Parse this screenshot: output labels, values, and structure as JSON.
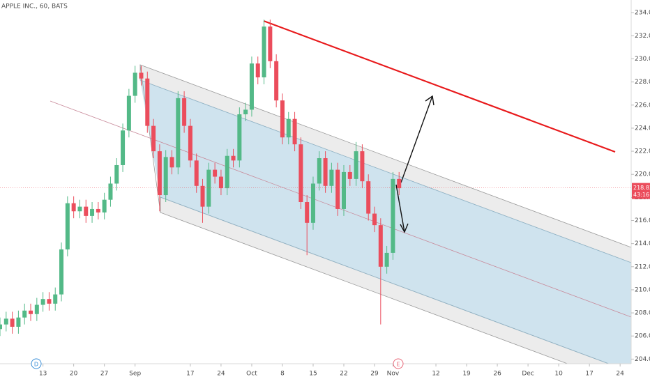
{
  "chart_data": {
    "type": "candlestick",
    "title": "APPLE INC., 60, BATS",
    "up_color": "#53b987",
    "down_color": "#eb4d5c",
    "x": [
      -7,
      -6,
      -5,
      -4,
      -3,
      -2,
      -1,
      0,
      1,
      2,
      3,
      4,
      5,
      6,
      7,
      8,
      9,
      10,
      11,
      12,
      13,
      14,
      15,
      16,
      17,
      18,
      19,
      20,
      21,
      22,
      23,
      24,
      25,
      26,
      27,
      28,
      29,
      30,
      31,
      32,
      33,
      34,
      35,
      36,
      37,
      38,
      39,
      40,
      41,
      42,
      43,
      44,
      45,
      46,
      47,
      48,
      49,
      50,
      51,
      52,
      53,
      54,
      55,
      56,
      57,
      58
    ],
    "open": [
      206.6,
      207,
      207.5,
      206.8,
      207.6,
      208.2,
      207.9,
      208.7,
      209.2,
      208.8,
      209.6,
      213.5,
      217.5,
      216.8,
      217.2,
      216.4,
      217.0,
      216.7,
      217.8,
      219.2,
      220.8,
      223.8,
      226.8,
      228.8,
      228.3,
      224.2,
      222.0,
      218.2,
      221.5,
      220.6,
      226.6,
      224.2,
      221.2,
      219.0,
      217.2,
      220.4,
      219.8,
      218.8,
      221.6,
      221.2,
      225.2,
      225.6,
      229.6,
      228.4,
      232.8,
      229.8,
      226.4,
      223.2,
      224.8,
      222.6,
      217.6,
      215.8,
      219.2,
      221.4,
      219.0,
      220.4,
      217.0,
      220.2,
      219.6,
      222.0,
      219.4,
      216.6,
      215.6,
      212.0,
      213.2,
      219.6
    ],
    "high": [
      207.6,
      208.1,
      208.1,
      208.2,
      208.8,
      208.8,
      209.3,
      209.8,
      209.8,
      210.2,
      214.1,
      218.1,
      218.1,
      217.8,
      217.8,
      217.6,
      217.6,
      218.4,
      219.8,
      221.4,
      224.4,
      227.4,
      229.4,
      229.4,
      228.9,
      224.8,
      222.6,
      222.1,
      222.1,
      227.2,
      227.2,
      224.8,
      221.8,
      219.6,
      221.0,
      221.0,
      220.4,
      222.2,
      222.2,
      225.8,
      226.2,
      230.2,
      230.2,
      233.4,
      233.4,
      230.4,
      227.0,
      225.4,
      225.4,
      223.2,
      218.2,
      219.8,
      222.0,
      222.0,
      221.0,
      221.0,
      220.8,
      220.8,
      222.8,
      222.6,
      220.0,
      217.2,
      216.2,
      213.8,
      220.2,
      220.2
    ],
    "low": [
      206.0,
      206.4,
      206.2,
      206.2,
      207.0,
      207.3,
      207.3,
      208.1,
      208.2,
      208.2,
      209.0,
      212.9,
      216.2,
      216.2,
      215.8,
      215.8,
      216.1,
      216.1,
      217.2,
      218.6,
      220.2,
      223.2,
      226.2,
      227.7,
      223.6,
      221.4,
      216.8,
      217.6,
      220.0,
      220.0,
      223.6,
      220.6,
      218.4,
      215.8,
      216.6,
      219.2,
      218.2,
      218.2,
      220.6,
      220.6,
      224.6,
      225.0,
      227.8,
      227.8,
      229.2,
      225.8,
      222.6,
      222.6,
      222.0,
      217.0,
      213.0,
      215.2,
      218.6,
      218.4,
      218.4,
      216.4,
      216.4,
      219.0,
      219.0,
      218.8,
      216.0,
      215.0,
      207.0,
      211.4,
      212.6,
      218.2
    ],
    "close": [
      207,
      207.5,
      206.8,
      207.6,
      208.2,
      207.9,
      208.7,
      209.2,
      208.8,
      209.6,
      213.5,
      217.5,
      216.8,
      217.2,
      216.4,
      217.0,
      216.7,
      217.8,
      219.2,
      220.8,
      223.8,
      226.8,
      228.8,
      228.3,
      224.2,
      222.0,
      218.2,
      221.5,
      220.6,
      226.6,
      224.2,
      221.2,
      219.0,
      217.2,
      220.4,
      219.8,
      218.8,
      221.6,
      221.2,
      225.2,
      225.6,
      229.6,
      228.4,
      232.8,
      229.8,
      226.4,
      223.2,
      224.8,
      222.6,
      217.6,
      215.8,
      219.2,
      221.4,
      219.0,
      220.4,
      217.0,
      220.2,
      219.6,
      222.0,
      219.4,
      216.6,
      215.6,
      212.0,
      213.2,
      219.6,
      218.8
    ],
    "xlim": [
      -7,
      95.8
    ],
    "ylim": [
      203.6,
      235.1
    ],
    "xticks": [
      {
        "value": 0,
        "label": "13"
      },
      {
        "value": 5,
        "label": "20"
      },
      {
        "value": 10,
        "label": "27"
      },
      {
        "value": 15,
        "label": "Sep"
      },
      {
        "value": 24,
        "label": "17"
      },
      {
        "value": 29,
        "label": "24"
      },
      {
        "value": 34,
        "label": "Oct"
      },
      {
        "value": 39,
        "label": "8"
      },
      {
        "value": 44,
        "label": "15"
      },
      {
        "value": 49,
        "label": "22"
      },
      {
        "value": 54,
        "label": "29"
      },
      {
        "value": 57,
        "label": "Nov"
      },
      {
        "value": 64,
        "label": "12"
      },
      {
        "value": 69,
        "label": "19"
      },
      {
        "value": 74,
        "label": "26"
      },
      {
        "value": 79,
        "label": "Dec"
      },
      {
        "value": 84,
        "label": "10"
      },
      {
        "value": 89,
        "label": "17"
      },
      {
        "value": 94,
        "label": "24"
      }
    ],
    "yticks": [
      {
        "value": 204,
        "label": "204.00"
      },
      {
        "value": 206,
        "label": "206.00"
      },
      {
        "value": 208,
        "label": "208.00"
      },
      {
        "value": 210,
        "label": "210.00"
      },
      {
        "value": 212,
        "label": "212.00"
      },
      {
        "value": 214,
        "label": "214.00"
      },
      {
        "value": 216,
        "label": "216.00"
      },
      {
        "value": 218,
        "label": "218.00"
      },
      {
        "value": 220,
        "label": "220.00"
      },
      {
        "value": 222,
        "label": "222.00"
      },
      {
        "value": 224,
        "label": "224.00"
      },
      {
        "value": 226,
        "label": "226.00"
      },
      {
        "value": 228,
        "label": "228.00"
      },
      {
        "value": 230,
        "label": "230.00"
      },
      {
        "value": 232,
        "label": "232.00"
      },
      {
        "value": 234,
        "label": "234.00"
      }
    ],
    "last_price": 218.83,
    "countdown": "43:16",
    "markers": [
      "D",
      "E"
    ]
  }
}
